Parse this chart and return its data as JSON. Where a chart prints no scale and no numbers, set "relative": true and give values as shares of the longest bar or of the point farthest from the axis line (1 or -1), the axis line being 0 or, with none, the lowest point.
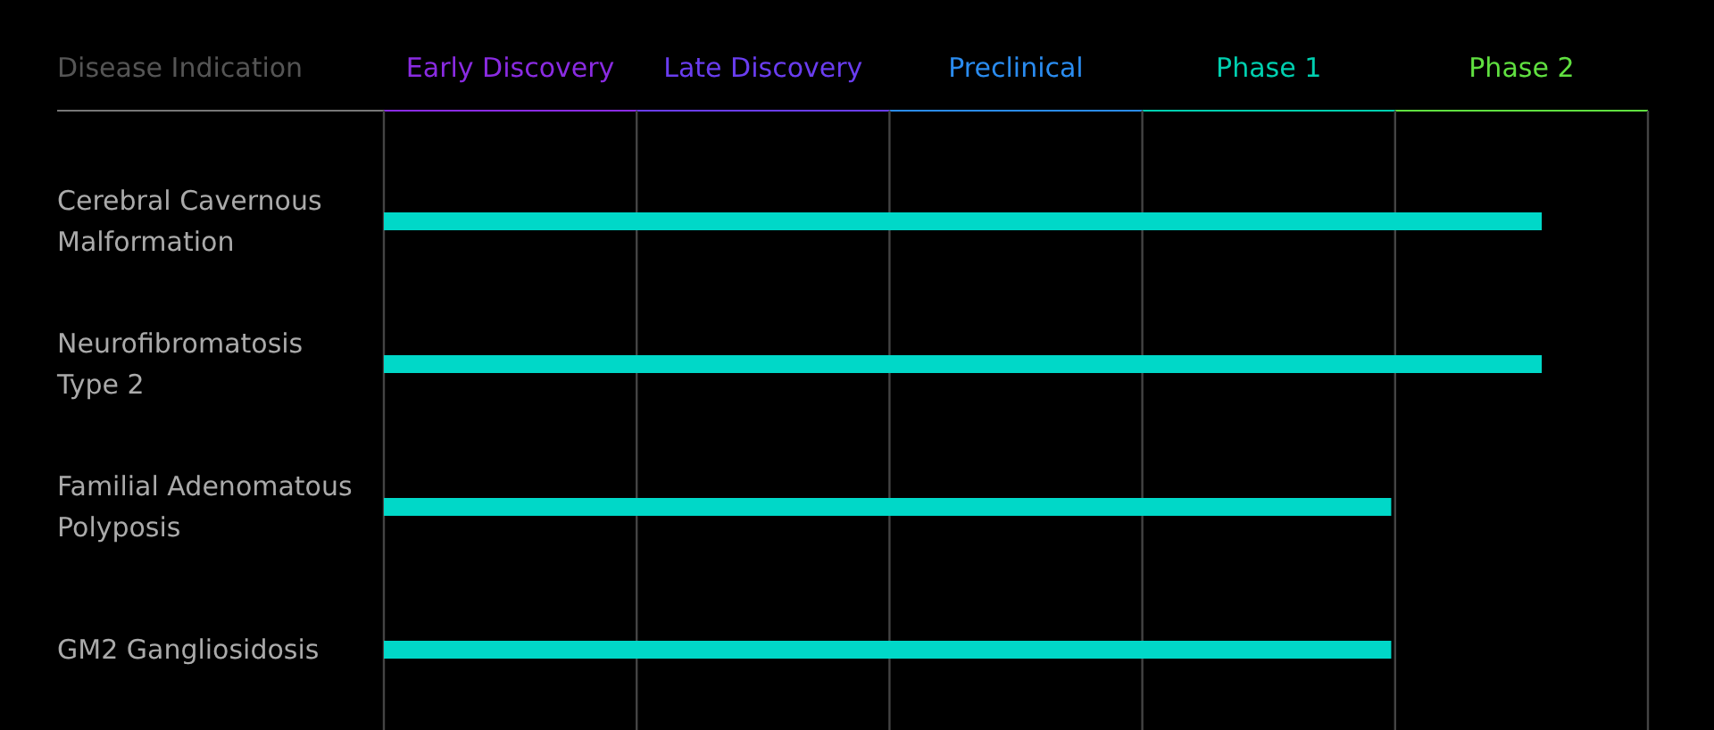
{
  "chart_data": {
    "type": "bar",
    "orientation": "horizontal",
    "ylabel": "Disease Indication",
    "relative": true,
    "categories": [
      "Cerebral Cavernous Malformation",
      "Neurofibromatosis Type 2",
      "Familial Adenomatous Polyposis",
      "GM2 Gangliosidosis"
    ],
    "series": [
      {
        "color": "#00d8c8",
        "values": [
          1,
          1,
          0.87,
          0.87
        ]
      }
    ],
    "annotations": [
      "Early Discovery",
      "Late Discovery",
      "Preclinical",
      "Phase 1",
      "Phase 2"
    ],
    "grid": "x"
  }
}
